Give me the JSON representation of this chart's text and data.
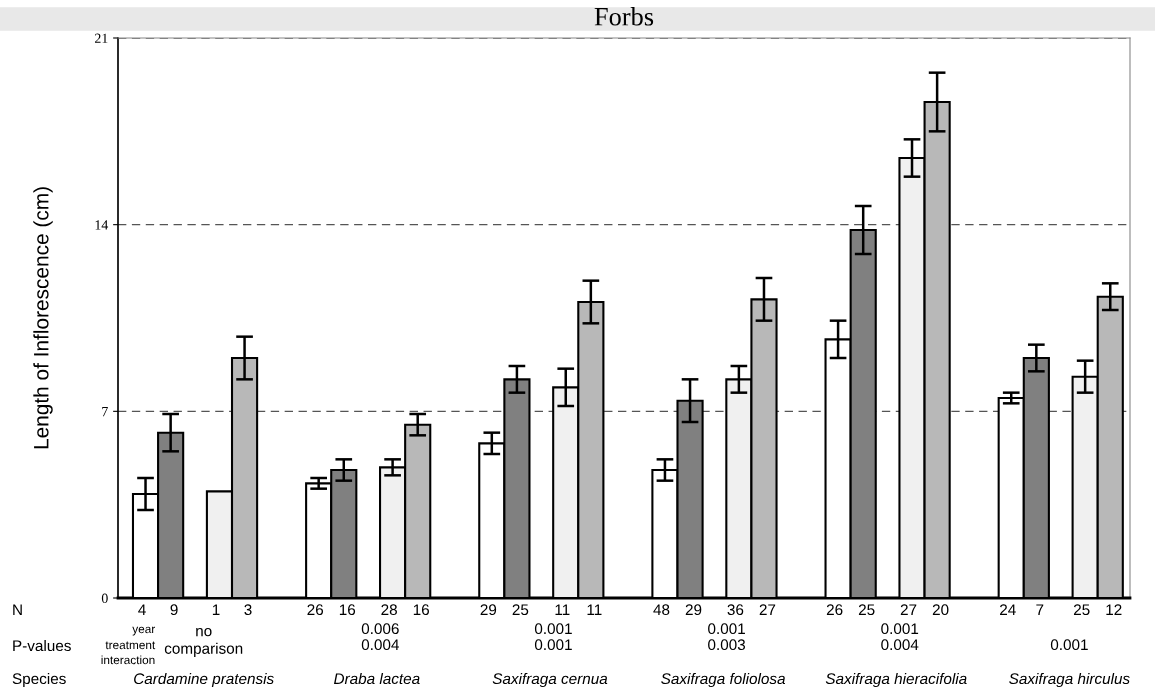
{
  "chart_data": {
    "type": "bar",
    "title": "Forbs",
    "ylabel": "Length of Inflorescence (cm)",
    "xlabel": "Species",
    "categories": [
      "Cardamine pratensis",
      "Draba lactea",
      "Saxifraga cernua",
      "Saxifraga foliolosa",
      "Saxifraga hieracifolia",
      "Saxifraga hirculus"
    ],
    "series": [
      {
        "color": "#ffffff",
        "values": [
          3.9,
          4.3,
          5.8,
          4.8,
          9.7,
          7.5
        ],
        "errors": [
          0.6,
          0.2,
          0.4,
          0.4,
          0.7,
          0.2
        ]
      },
      {
        "color": "#808080",
        "values": [
          6.2,
          4.8,
          8.2,
          7.4,
          13.8,
          9.0
        ],
        "errors": [
          0.7,
          0.4,
          0.5,
          0.8,
          0.9,
          0.5
        ]
      },
      {
        "color": "#f0f0f0",
        "values": [
          4.0,
          4.9,
          7.9,
          8.2,
          16.5,
          8.3
        ],
        "errors": [
          null,
          0.3,
          0.7,
          0.5,
          0.7,
          0.6
        ]
      },
      {
        "color": "#b8b8b8",
        "values": [
          9.0,
          6.5,
          11.1,
          11.2,
          18.6,
          11.3
        ],
        "errors": [
          0.8,
          0.4,
          0.8,
          0.8,
          1.1,
          0.5
        ]
      }
    ],
    "ylim": [
      0,
      21
    ],
    "yticks": [
      0,
      7,
      14,
      21
    ],
    "grid": "y",
    "legend": false,
    "annotations": [
      "N",
      "4",
      "9",
      "1",
      "3",
      "26",
      "16",
      "28",
      "16",
      "29",
      "25",
      "11",
      "11",
      "48",
      "29",
      "36",
      "27",
      "26",
      "25",
      "27",
      "20",
      "24",
      "7",
      "25",
      "12",
      "P-values",
      "year",
      "treatment",
      "interaction",
      "no\ncomparison",
      "0.006",
      "0.004",
      "0.001",
      "0.001",
      "0.001",
      "0.003",
      "0.001",
      "0.004",
      "0.001"
    ]
  }
}
